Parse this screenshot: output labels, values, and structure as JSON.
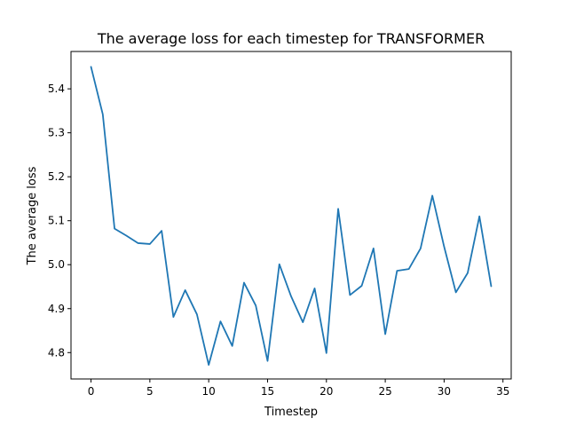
{
  "chart_data": {
    "type": "line",
    "title": "The average loss for each timestep for TRANSFORMER",
    "xlabel": "Timestep",
    "ylabel": "The average loss",
    "xlim": [
      -1.7,
      35.7
    ],
    "ylim": [
      4.74,
      5.485
    ],
    "x_ticks": [
      0,
      5,
      10,
      15,
      20,
      25,
      30,
      35
    ],
    "y_ticks": [
      4.8,
      4.9,
      5.0,
      5.1,
      5.2,
      5.3,
      5.4
    ],
    "grid": false,
    "series": [
      {
        "color": "#1f77b4",
        "x": [
          0,
          1,
          2,
          3,
          4,
          5,
          6,
          7,
          8,
          9,
          10,
          11,
          12,
          13,
          14,
          15,
          16,
          17,
          18,
          19,
          20,
          21,
          22,
          23,
          24,
          25,
          26,
          27,
          28,
          29,
          30,
          31,
          32,
          33,
          34
        ],
        "values": [
          5.45,
          5.342,
          5.082,
          5.066,
          5.049,
          5.047,
          5.077,
          4.881,
          4.942,
          4.887,
          4.772,
          4.871,
          4.815,
          4.959,
          4.907,
          4.781,
          5.001,
          4.928,
          4.869,
          4.946,
          4.799,
          5.127,
          4.931,
          4.952,
          5.037,
          4.842,
          4.986,
          4.99,
          5.037,
          5.157,
          5.041,
          4.937,
          4.981,
          5.11,
          4.951
        ]
      }
    ]
  }
}
